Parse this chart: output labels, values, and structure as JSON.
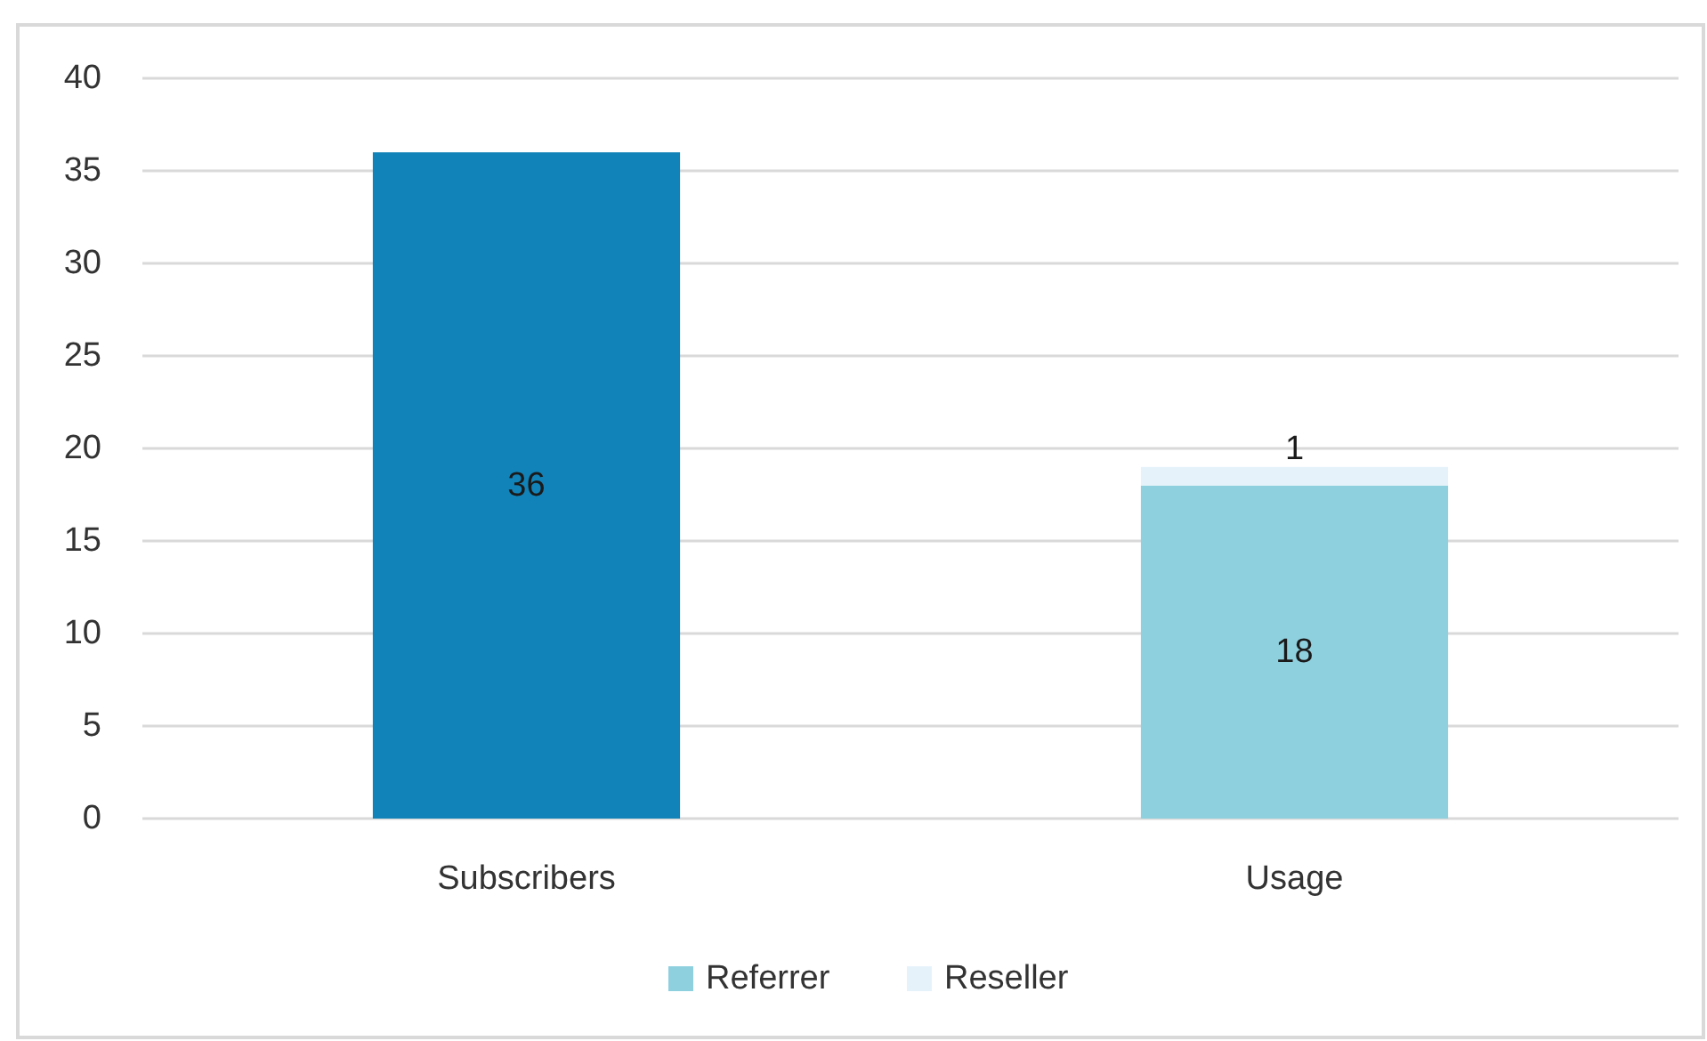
{
  "chart_data": {
    "type": "bar",
    "stacked": true,
    "categories": [
      "Subscribers",
      "Usage"
    ],
    "series": [
      {
        "color": "#1283b8",
        "values": [
          36,
          null
        ]
      },
      {
        "name": "Referrer",
        "color": "#8fd0df",
        "values": [
          null,
          18
        ]
      },
      {
        "name": "Reseller",
        "color": "#e6f2fa",
        "values": [
          null,
          1
        ]
      }
    ],
    "ylim": [
      0,
      40
    ],
    "yticks": [
      0,
      5,
      10,
      15,
      20,
      25,
      30,
      35,
      40
    ],
    "grid": "y",
    "legend": "bottom",
    "data_labels": true
  }
}
